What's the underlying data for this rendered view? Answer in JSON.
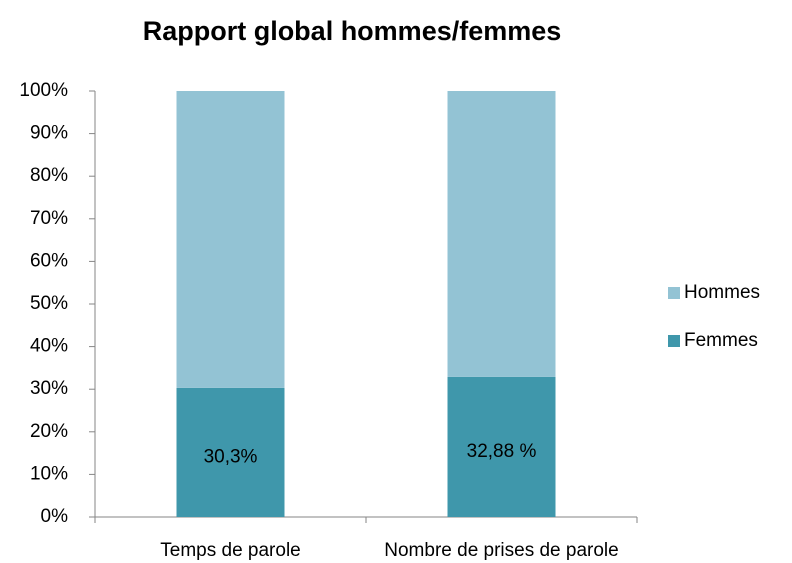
{
  "chart_data": {
    "type": "stacked_bar",
    "title": "Rapport global hommes/femmes",
    "categories": [
      "Temps de parole",
      "Nombre de prises de parole"
    ],
    "series": [
      {
        "name": "Femmes",
        "color": "#3f97ab",
        "values": [
          30.3,
          32.88
        ],
        "value_labels": [
          "30,3%",
          "32,88 %"
        ]
      },
      {
        "name": "Hommes",
        "color": "#93c3d4",
        "values": [
          69.7,
          67.12
        ]
      }
    ],
    "ylim": [
      0,
      100
    ],
    "yticks": [
      {
        "value": 0,
        "label": "0%"
      },
      {
        "value": 10,
        "label": "10%"
      },
      {
        "value": 20,
        "label": "20%"
      },
      {
        "value": 30,
        "label": "30%"
      },
      {
        "value": 40,
        "label": "40%"
      },
      {
        "value": 50,
        "label": "50%"
      },
      {
        "value": 60,
        "label": "60%"
      },
      {
        "value": 70,
        "label": "70%"
      },
      {
        "value": 80,
        "label": "80%"
      },
      {
        "value": 90,
        "label": "90%"
      },
      {
        "value": 100,
        "label": "100%"
      }
    ],
    "legend": "right"
  }
}
